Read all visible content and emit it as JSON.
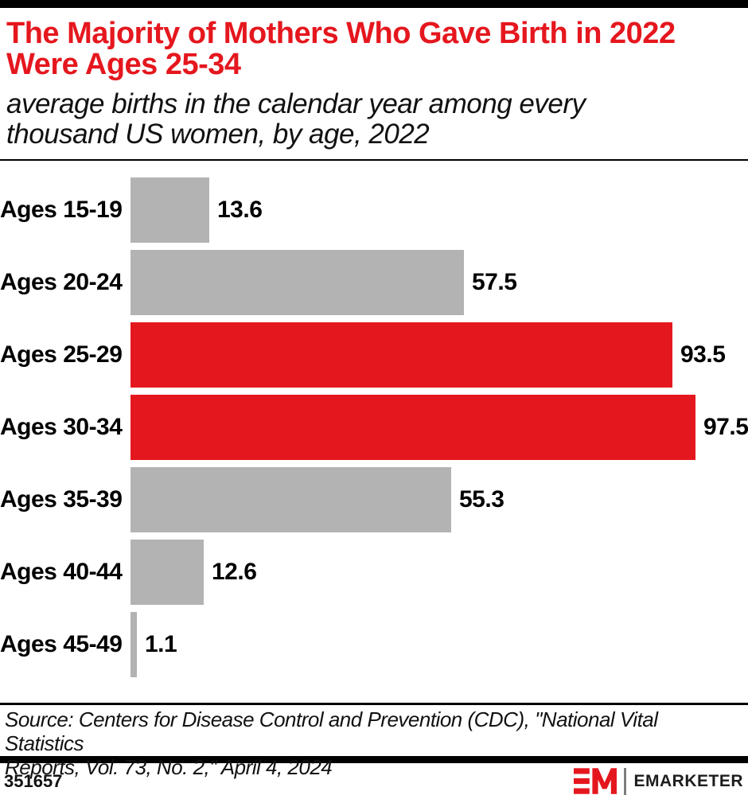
{
  "colors": {
    "accent_red": "#E5171E",
    "bar_gray": "#B3B3B3",
    "text_black": "#111111",
    "rule_black": "#000000"
  },
  "header": {
    "title_lines": [
      "The Majority of Mothers Who Gave Birth in 2022",
      "Were Ages 25-34"
    ],
    "subtitle_lines": [
      "average births in the calendar year among every",
      "thousand US women, by age, 2022"
    ]
  },
  "chart_data": {
    "type": "bar",
    "orientation": "horizontal",
    "title": "The Majority of Mothers Who Gave Birth in 2022 Were Ages 25-34",
    "subtitle": "average births in the calendar year among every thousand US women, by age, 2022",
    "categories": [
      "Ages 15-19",
      "Ages 20-24",
      "Ages 25-29",
      "Ages 30-34",
      "Ages 35-39",
      "Ages 40-44",
      "Ages 45-49"
    ],
    "values": [
      13.6,
      57.5,
      93.5,
      97.5,
      55.3,
      12.6,
      1.1
    ],
    "value_labels": [
      "13.6",
      "57.5",
      "93.5",
      "97.5",
      "55.3",
      "12.6",
      "1.1"
    ],
    "bar_colors": [
      "#B3B3B3",
      "#B3B3B3",
      "#E5171E",
      "#E5171E",
      "#B3B3B3",
      "#B3B3B3",
      "#B3B3B3"
    ],
    "highlighted_categories": [
      "Ages 25-29",
      "Ages 30-34"
    ],
    "xlim": [
      0,
      100
    ],
    "grid": false,
    "legend": "none",
    "data_labels": "outside-end"
  },
  "source": {
    "lines": [
      "Source: Centers for Disease Control and Prevention (CDC), \"National Vital Statistics",
      "Reports, Vol. 73, No. 2,\" April 4, 2024"
    ]
  },
  "footer": {
    "chart_id": "351657",
    "brand_name": "EMARKETER"
  }
}
